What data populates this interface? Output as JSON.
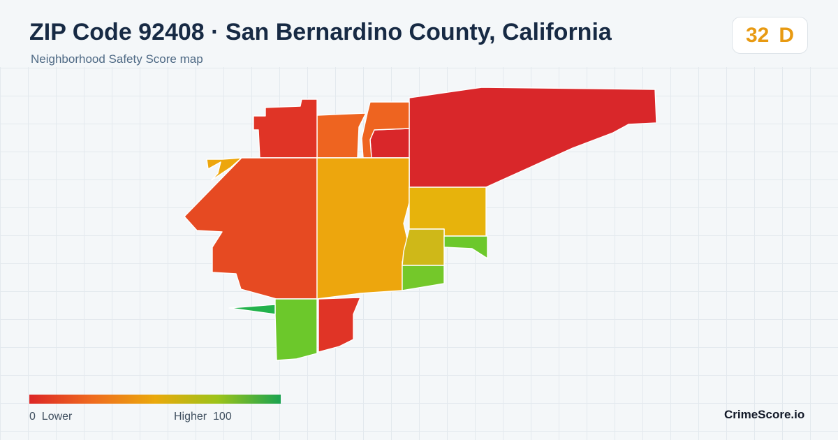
{
  "header": {
    "title": "ZIP Code 92408 · San Bernardino County, California",
    "subtitle": "Neighborhood Safety Score map"
  },
  "score": {
    "value": "32",
    "grade": "D",
    "color": "#e89a12"
  },
  "legend": {
    "low_value": "0",
    "low_label": "Lower",
    "high_label": "Higher",
    "high_value": "100",
    "colors": [
      "#dc2626",
      "#ef6b1f",
      "#eaa90c",
      "#9cc31a",
      "#1aa350"
    ]
  },
  "brand": "CrimeScore.io",
  "map_colors": {
    "red": "#d9272a",
    "red_orange": "#e03426",
    "orange_red": "#e64a22",
    "orange": "#ee6420",
    "amber": "#eda60d",
    "yellow": "#e7b30c",
    "olive": "#cfb818",
    "light_green": "#74c82a",
    "green": "#6cc82b",
    "emerald": "#22b24c"
  }
}
